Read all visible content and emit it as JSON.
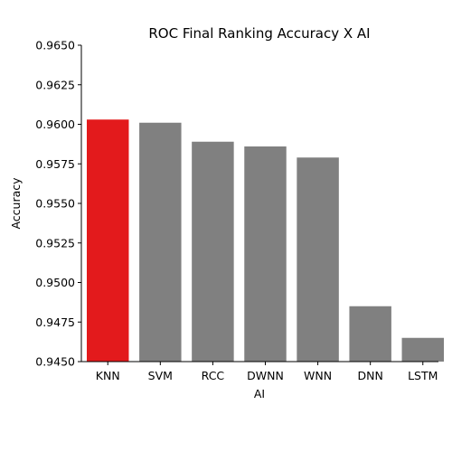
{
  "chart_data": {
    "type": "bar",
    "title": "ROC Final Ranking Accuracy X AI",
    "xlabel": "AI",
    "ylabel": "Accuracy",
    "categories": [
      "KNN",
      "SVM",
      "RCC",
      "DWNN",
      "WNN",
      "DNN",
      "LSTM"
    ],
    "values": [
      0.9603,
      0.9601,
      0.9589,
      0.9586,
      0.9579,
      0.9485,
      0.9465
    ],
    "ylim": [
      0.945,
      0.965
    ],
    "yticks": [
      "0.9450",
      "0.9475",
      "0.9500",
      "0.9525",
      "0.9550",
      "0.9575",
      "0.9600",
      "0.9625",
      "0.9650"
    ],
    "bar_colors": [
      "#e31a1c",
      "#808080",
      "#808080",
      "#808080",
      "#808080",
      "#808080",
      "#808080"
    ],
    "grid": false,
    "legend": "none"
  }
}
